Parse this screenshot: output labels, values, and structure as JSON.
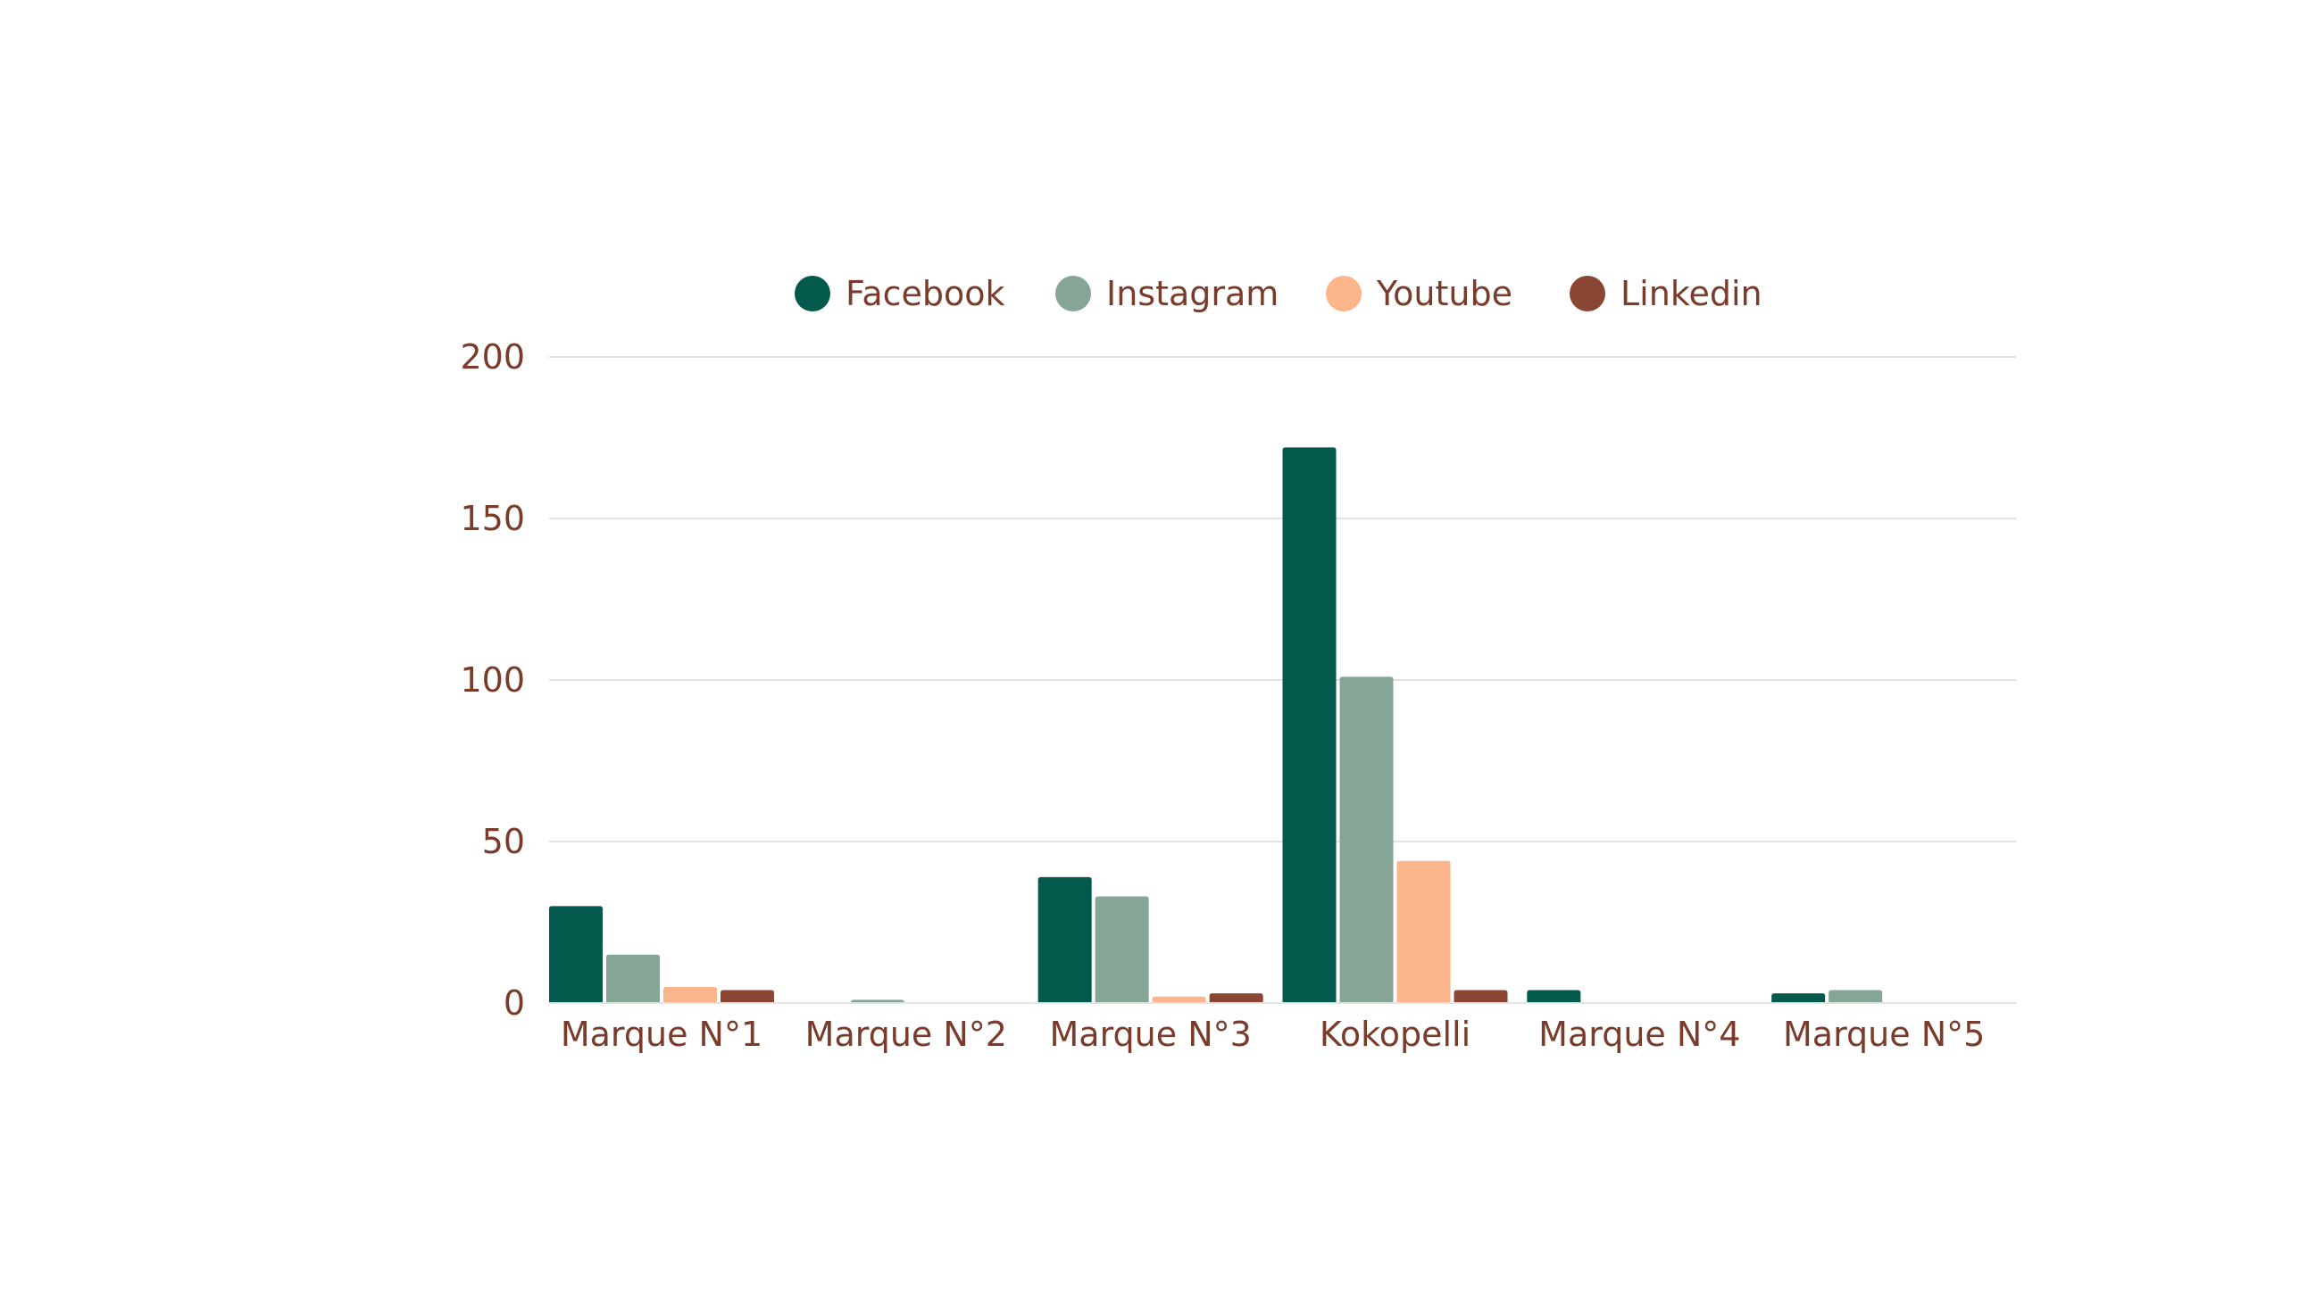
{
  "chart_data": {
    "type": "bar",
    "title": "",
    "xlabel": "",
    "ylabel": "",
    "categories": [
      "Marque N°1",
      "Marque N°2",
      "Marque N°3",
      "Kokopelli",
      "Marque N°4",
      "Marque N°5"
    ],
    "series": [
      {
        "name": "Facebook",
        "color": "#03594b",
        "values": [
          30,
          0,
          39,
          172,
          4,
          3
        ]
      },
      {
        "name": "Instagram",
        "color": "#85a696",
        "values": [
          15,
          1,
          33,
          101,
          0,
          4
        ]
      },
      {
        "name": "Youtube",
        "color": "#fbb58b",
        "values": [
          5,
          0,
          2,
          44,
          0,
          0
        ]
      },
      {
        "name": "Linkedin",
        "color": "#8a4632",
        "values": [
          4,
          0,
          3,
          4,
          0,
          0
        ]
      }
    ],
    "ylim": [
      0,
      200
    ],
    "yticks": [
      0,
      50,
      100,
      150,
      200
    ],
    "grid": true,
    "legend_position": "top-center",
    "colors": {
      "text": "#7a3b2a",
      "grid": "#e3e3e3"
    }
  }
}
